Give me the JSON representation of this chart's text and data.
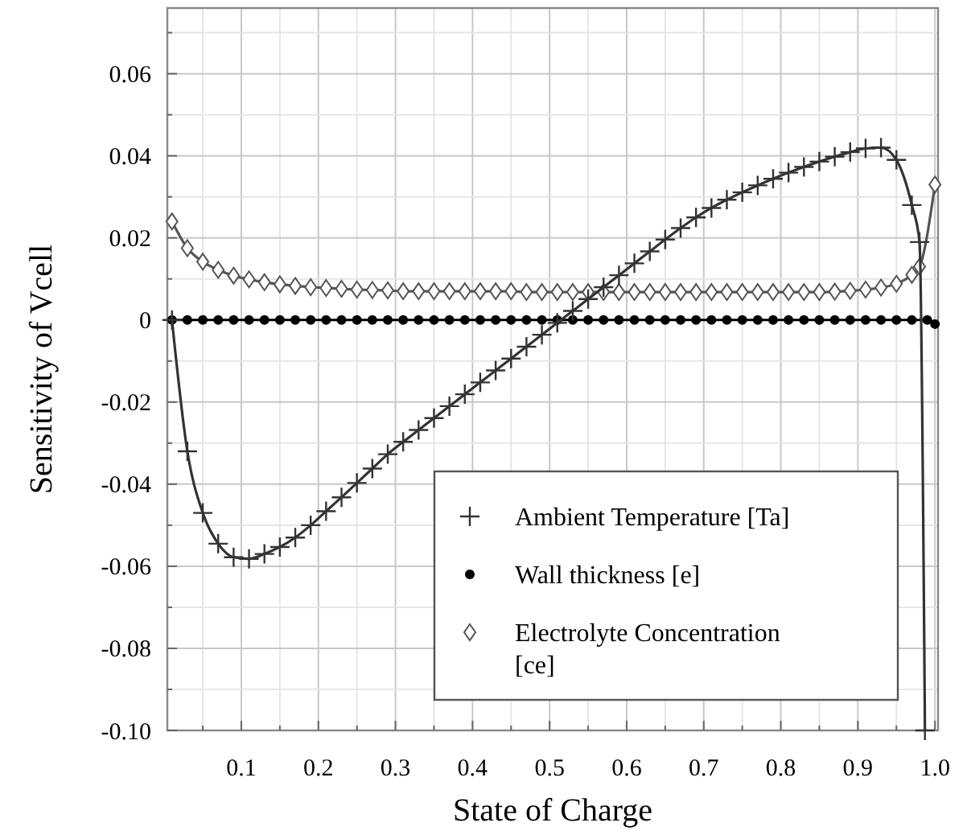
{
  "chart_data": {
    "type": "line",
    "xlabel": "State of Charge",
    "ylabel": "Sensitivity of Vcell",
    "xlim": [
      0.004,
      1.004
    ],
    "ylim": [
      -0.1,
      0.076
    ],
    "xticks": [
      {
        "value": 0.05,
        "label": null
      },
      0.1,
      {
        "value": 0.15,
        "label": null
      },
      0.2,
      {
        "value": 0.25,
        "label": null
      },
      0.3,
      {
        "value": 0.35,
        "label": null
      },
      0.4,
      {
        "value": 0.45,
        "label": null
      },
      0.5,
      {
        "value": 0.55,
        "label": null
      },
      0.6,
      {
        "value": 0.65,
        "label": null
      },
      0.7,
      {
        "value": 0.75,
        "label": null
      },
      0.8,
      {
        "value": 0.85,
        "label": null
      },
      0.9,
      {
        "value": 0.95,
        "label": null
      },
      {
        "value": 1.0,
        "label": "1.0"
      }
    ],
    "yticks": [
      {
        "value": -0.1,
        "label": "-0.10"
      },
      {
        "value": -0.09,
        "label": null
      },
      -0.08,
      {
        "value": -0.07,
        "label": null
      },
      -0.06,
      {
        "value": -0.05,
        "label": null
      },
      -0.04,
      {
        "value": -0.03,
        "label": null
      },
      -0.02,
      {
        "value": -0.01,
        "label": null
      },
      0,
      {
        "value": 0.01,
        "label": null
      },
      0.02,
      {
        "value": 0.03,
        "label": null
      },
      0.04,
      {
        "value": 0.05,
        "label": null
      },
      0.06,
      {
        "value": 0.07,
        "label": null
      }
    ],
    "grid": true,
    "legend": "bottom right",
    "line_style": "solid",
    "series": [
      {
        "name": "Ambient Temperature [Ta]",
        "color": "#333333",
        "marker": "cross",
        "x": [
          0.01,
          0.03,
          0.05,
          0.07,
          0.09,
          0.11,
          0.13,
          0.15,
          0.17,
          0.19,
          0.21,
          0.23,
          0.25,
          0.27,
          0.29,
          0.31,
          0.33,
          0.35,
          0.37,
          0.39,
          0.41,
          0.43,
          0.45,
          0.47,
          0.49,
          0.51,
          0.53,
          0.55,
          0.57,
          0.59,
          0.61,
          0.63,
          0.65,
          0.67,
          0.69,
          0.71,
          0.73,
          0.75,
          0.77,
          0.79,
          0.81,
          0.83,
          0.85,
          0.87,
          0.89,
          0.91,
          0.93,
          0.95,
          0.97,
          0.98,
          0.987
        ],
        "values": [
          0.0,
          -0.032,
          -0.047,
          -0.0545,
          -0.0578,
          -0.0582,
          -0.057,
          -0.0553,
          -0.053,
          -0.05,
          -0.0466,
          -0.0432,
          -0.0397,
          -0.0362,
          -0.0327,
          -0.0297,
          -0.0268,
          -0.0239,
          -0.021,
          -0.0181,
          -0.0152,
          -0.0123,
          -0.0094,
          -0.0065,
          -0.0036,
          -0.0007,
          0.0022,
          0.0051,
          0.008,
          0.0109,
          0.0138,
          0.0167,
          0.0196,
          0.0224,
          0.025,
          0.0273,
          0.0293,
          0.0311,
          0.0328,
          0.0344,
          0.0359,
          0.0373,
          0.0386,
          0.0398,
          0.0409,
          0.0418,
          0.042,
          0.039,
          0.028,
          0.019,
          -0.1
        ]
      },
      {
        "name": "Wall thickness [e]",
        "color": "#000000",
        "marker": "circle",
        "x": [
          0.01,
          0.03,
          0.05,
          0.07,
          0.09,
          0.11,
          0.13,
          0.15,
          0.17,
          0.19,
          0.21,
          0.23,
          0.25,
          0.27,
          0.29,
          0.31,
          0.33,
          0.35,
          0.37,
          0.39,
          0.41,
          0.43,
          0.45,
          0.47,
          0.49,
          0.51,
          0.53,
          0.55,
          0.57,
          0.59,
          0.61,
          0.63,
          0.65,
          0.67,
          0.69,
          0.71,
          0.73,
          0.75,
          0.77,
          0.79,
          0.81,
          0.83,
          0.85,
          0.87,
          0.89,
          0.91,
          0.93,
          0.95,
          0.97,
          0.99,
          1.0
        ],
        "values": [
          0,
          0,
          0,
          0,
          0,
          0,
          0,
          0,
          0,
          0,
          0,
          0,
          0,
          0,
          0,
          0,
          0,
          0,
          0,
          0,
          0,
          0,
          0,
          0,
          0,
          0,
          0,
          0,
          0,
          0,
          0,
          0,
          0,
          0,
          0,
          0,
          0,
          0,
          0,
          0,
          0,
          0,
          0,
          0,
          0,
          0,
          0,
          0,
          0,
          0,
          -0.001
        ]
      },
      {
        "name": "Electrolyte Concentration [ce]",
        "color": "#555555",
        "marker": "diamond",
        "x": [
          0.01,
          0.03,
          0.05,
          0.07,
          0.09,
          0.11,
          0.13,
          0.15,
          0.17,
          0.19,
          0.21,
          0.23,
          0.25,
          0.27,
          0.29,
          0.31,
          0.33,
          0.35,
          0.37,
          0.39,
          0.41,
          0.43,
          0.45,
          0.47,
          0.49,
          0.51,
          0.53,
          0.55,
          0.57,
          0.59,
          0.61,
          0.63,
          0.65,
          0.67,
          0.69,
          0.71,
          0.73,
          0.75,
          0.77,
          0.79,
          0.81,
          0.83,
          0.85,
          0.87,
          0.89,
          0.91,
          0.93,
          0.95,
          0.97,
          0.98,
          1.0
        ],
        "values": [
          0.024,
          0.0175,
          0.0142,
          0.0122,
          0.0108,
          0.0099,
          0.0092,
          0.0087,
          0.0083,
          0.008,
          0.0078,
          0.0076,
          0.0074,
          0.0073,
          0.0072,
          0.007,
          0.007,
          0.007,
          0.007,
          0.007,
          0.007,
          0.007,
          0.007,
          0.0068,
          0.0068,
          0.0068,
          0.0068,
          0.0068,
          0.0068,
          0.0068,
          0.0068,
          0.0068,
          0.0068,
          0.0068,
          0.0068,
          0.0068,
          0.0068,
          0.0068,
          0.0068,
          0.0068,
          0.0068,
          0.0068,
          0.0068,
          0.0069,
          0.0071,
          0.0074,
          0.0079,
          0.0088,
          0.011,
          0.013,
          0.033
        ]
      }
    ]
  }
}
